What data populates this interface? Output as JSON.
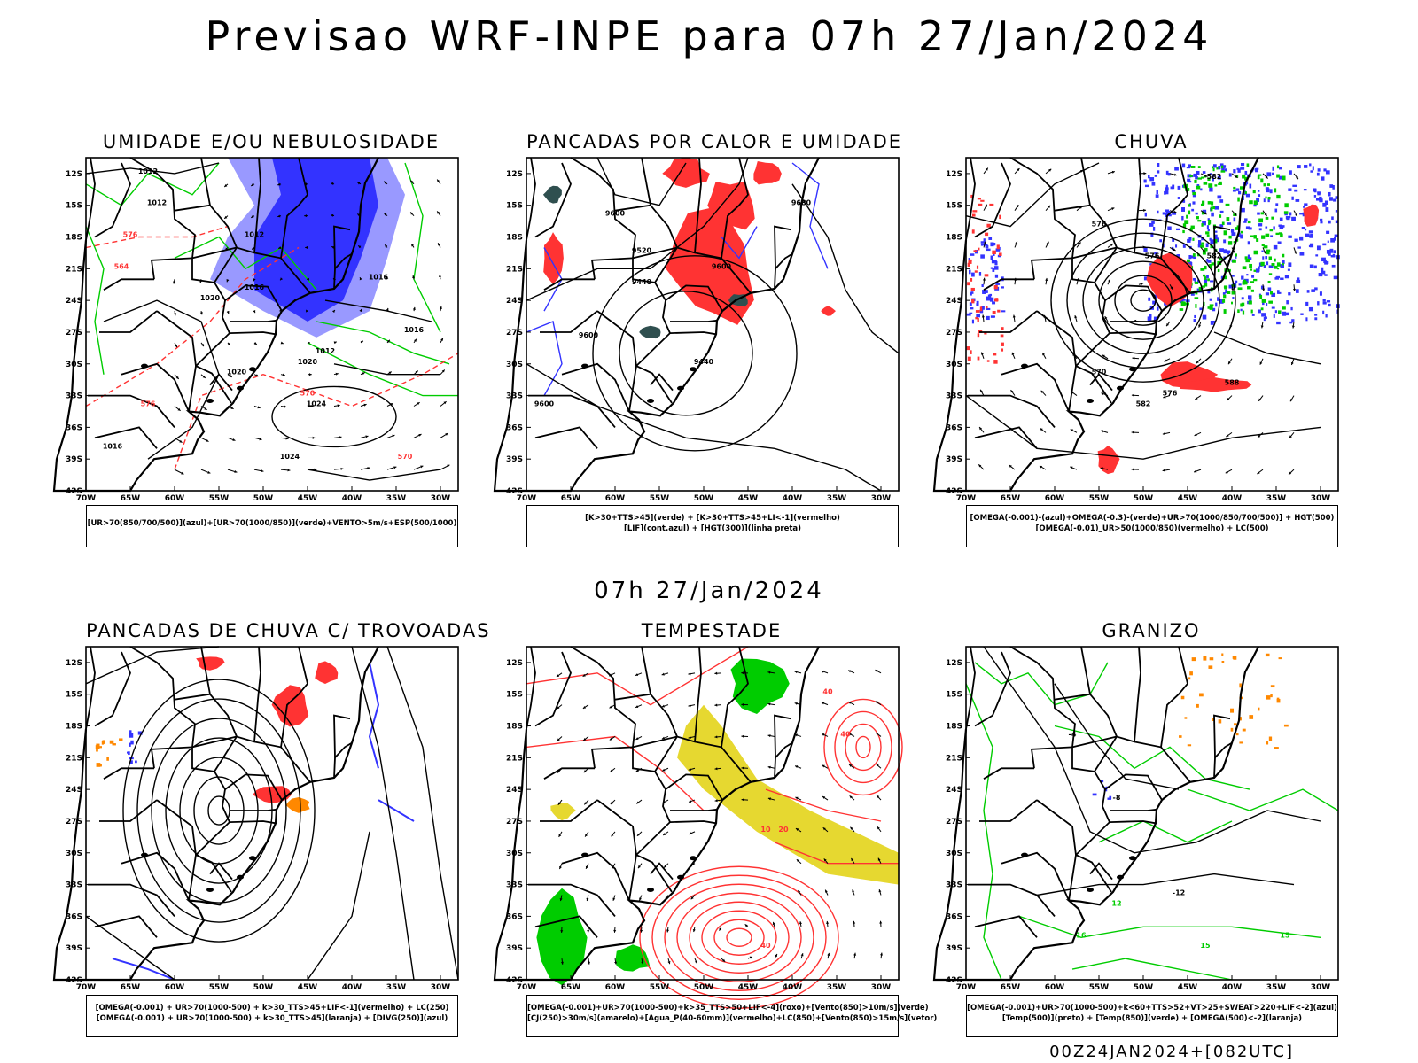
{
  "header": {
    "title": "Previsao WRF-INPE  para 07h 27/Jan/2024",
    "subtitle": "07h 27/Jan/2024",
    "run_stamp": "00Z24JAN2024+[082UTC]"
  },
  "colors": {
    "blue": "#3333ff",
    "light_blue": "#9999ff",
    "green": "#00cc00",
    "red": "#ff3333",
    "orange": "#ff8800",
    "yellow": "#e6d830",
    "dark_teal": "#2f4f4f",
    "black": "#000000"
  },
  "chart_data": [
    {
      "type": "map",
      "title": "UMIDADE E/OU NEBULOSIDADE",
      "legend_lines": [
        "[UR>70(850/700/500)](azul)+[UR>70(1000/850)](verde)+VENTO>5m/s+ESP(500/1000)"
      ],
      "xlim": [
        -70,
        -28
      ],
      "ylim": [
        -42,
        -10.5
      ],
      "x_ticks": [
        "70W",
        "65W",
        "60W",
        "55W",
        "50W",
        "45W",
        "40W",
        "35W",
        "30W"
      ],
      "y_ticks": [
        "12S",
        "15S",
        "18S",
        "21S",
        "24S",
        "27S",
        "30S",
        "33S",
        "36S",
        "39S",
        "42S"
      ],
      "contour_labels": [
        "1012",
        "1012",
        "1012",
        "1016",
        "1016",
        "1016",
        "1020",
        "1020",
        "1024",
        "1024",
        "570",
        "576",
        "564",
        "576",
        "570",
        "1012",
        "1016",
        "1020"
      ]
    },
    {
      "type": "map",
      "title": "PANCADAS POR CALOR E UMIDADE",
      "legend_lines": [
        "[K>30+TTS>45](verde) + [K>30+TTS>45+LI<-1](vermelho)",
        "[LIF](cont.azul) + [HGT(300)](linha preta)"
      ],
      "xlim": [
        -70,
        -28
      ],
      "ylim": [
        -42,
        -10.5
      ],
      "x_ticks": [
        "70W",
        "65W",
        "60W",
        "55W",
        "50W",
        "45W",
        "40W",
        "35W",
        "30W"
      ],
      "y_ticks": [
        "12S",
        "15S",
        "18S",
        "21S",
        "24S",
        "27S",
        "30S",
        "33S",
        "36S",
        "39S",
        "42S"
      ],
      "contour_labels": [
        "9680",
        "9600",
        "9520",
        "9440",
        "9600",
        "9440",
        "9600",
        "9600"
      ]
    },
    {
      "type": "map",
      "title": "CHUVA",
      "legend_lines": [
        "[OMEGA(-0.001)-(azul)+OMEGA(-0.3)-(verde)+UR>70(1000/850/700/500)] + HGT(500)",
        "[OMEGA(-0.01)_UR>50(1000/850)(vermelho) + LC(500)"
      ],
      "xlim": [
        -70,
        -28
      ],
      "ylim": [
        -42,
        -10.5
      ],
      "x_ticks": [
        "70W",
        "65W",
        "60W",
        "55W",
        "50W",
        "45W",
        "40W",
        "35W",
        "30W"
      ],
      "y_ticks": [
        "12S",
        "15S",
        "18S",
        "21S",
        "24S",
        "27S",
        "30S",
        "33S",
        "36S",
        "39S",
        "42S"
      ],
      "contour_labels": [
        "582",
        "576",
        "576",
        "582",
        "570",
        "576",
        "582",
        "588"
      ]
    },
    {
      "type": "map",
      "title": "PANCADAS DE CHUVA C/ TROVOADAS",
      "legend_lines": [
        "[OMEGA(-0.001) + UR>70(1000-500) + k>30_TTS>45+LIF<-1](vermelho) + LC(250)",
        "[OMEGA(-0.001) + UR>70(1000-500) + k>30_TTS>45](laranja) + [DIVG(250)](azul)"
      ],
      "xlim": [
        -70,
        -28
      ],
      "ylim": [
        -42,
        -10.5
      ],
      "x_ticks": [
        "70W",
        "65W",
        "60W",
        "55W",
        "50W",
        "45W",
        "40W",
        "35W",
        "30W"
      ],
      "y_ticks": [
        "12S",
        "15S",
        "18S",
        "21S",
        "24S",
        "27S",
        "30S",
        "33S",
        "36S",
        "39S",
        "42S"
      ],
      "contour_labels": []
    },
    {
      "type": "map",
      "title": "TEMPESTADE",
      "legend_lines": [
        "[OMEGA(-0.001)+UR>70(1000-500)+k>35_TTS>50+LIF<-4](roxo)+[Vento(850)>10m/s](verde)",
        "[CJ(250)>30m/s](amarelo)+[Agua_P(40-60mm)](vermelho)+LC(850)+[Vento(850)>15m/s](vetor)"
      ],
      "xlim": [
        -70,
        -28
      ],
      "ylim": [
        -42,
        -10.5
      ],
      "x_ticks": [
        "70W",
        "65W",
        "60W",
        "55W",
        "50W",
        "45W",
        "40W",
        "35W",
        "30W"
      ],
      "y_ticks": [
        "12S",
        "15S",
        "18S",
        "21S",
        "24S",
        "27S",
        "30S",
        "33S",
        "36S",
        "39S",
        "42S"
      ],
      "contour_labels": [
        "40",
        "40",
        "10",
        "20",
        "40"
      ]
    },
    {
      "type": "map",
      "title": "GRANIZO",
      "legend_lines": [
        "[OMEGA(-0.001)+UR>70(1000-500)+k<60+TTS>52+VT>25+SWEAT>220+LIF<-2](azul)",
        "[Temp(500)](preto) + [Temp(850)](verde) + [OMEGA(500)<-2](laranja)"
      ],
      "xlim": [
        -70,
        -28
      ],
      "ylim": [
        -42,
        -10.5
      ],
      "x_ticks": [
        "70W",
        "65W",
        "60W",
        "55W",
        "50W",
        "45W",
        "40W",
        "35W",
        "30W"
      ],
      "y_ticks": [
        "12S",
        "15S",
        "18S",
        "21S",
        "24S",
        "27S",
        "30S",
        "33S",
        "36S",
        "39S",
        "42S"
      ],
      "contour_labels": [
        "-4",
        "-8",
        "-12",
        "12",
        "16",
        "15",
        "15"
      ]
    }
  ]
}
